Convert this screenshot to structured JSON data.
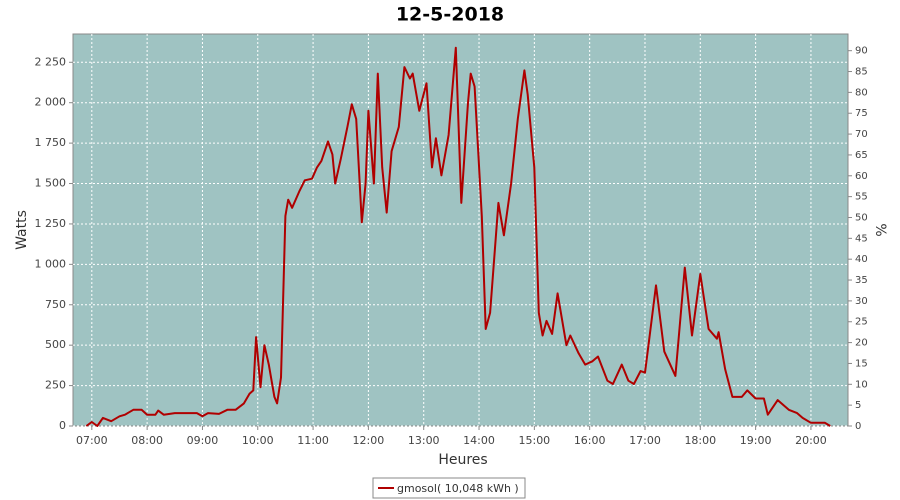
{
  "chart_data": {
    "type": "line",
    "title": "12-5-2018",
    "x_label": "Heures",
    "y_label": "Watts",
    "y2_label": "%",
    "plot_background": "#9fc3c2",
    "grid": true,
    "legend": "bottom",
    "xlim": [
      6.66,
      20.67
    ],
    "xticks": [
      {
        "value": 7,
        "label": "07:00"
      },
      {
        "value": 8,
        "label": "08:00"
      },
      {
        "value": 9,
        "label": "09:00"
      },
      {
        "value": 10,
        "label": "10:00"
      },
      {
        "value": 11,
        "label": "11:00"
      },
      {
        "value": 12,
        "label": "12:00"
      },
      {
        "value": 13,
        "label": "13:00"
      },
      {
        "value": 14,
        "label": "14:00"
      },
      {
        "value": 15,
        "label": "15:00"
      },
      {
        "value": 16,
        "label": "16:00"
      },
      {
        "value": 17,
        "label": "17:00"
      },
      {
        "value": 18,
        "label": "18:00"
      },
      {
        "value": 19,
        "label": "19:00"
      },
      {
        "value": 20,
        "label": "20:00"
      }
    ],
    "ylim": [
      0,
      2425
    ],
    "yticks": [
      0,
      250,
      500,
      750,
      {
        "value": 1000,
        "label": "1 000"
      },
      {
        "value": 1250,
        "label": "1 250"
      },
      {
        "value": 1500,
        "label": "1 500"
      },
      {
        "value": 1750,
        "label": "1 750"
      },
      {
        "value": 2000,
        "label": "2 000"
      },
      {
        "value": 2250,
        "label": "2 250"
      }
    ],
    "y2lim": [
      0,
      94
    ],
    "y2ticks": [
      0,
      5,
      10,
      15,
      20,
      25,
      30,
      35,
      40,
      45,
      50,
      55,
      60,
      65,
      70,
      75,
      80,
      85,
      90
    ],
    "x": [
      6.9,
      7.0,
      7.1,
      7.2,
      7.35,
      7.5,
      7.6,
      7.75,
      7.9,
      8.0,
      8.15,
      8.2,
      8.3,
      8.5,
      8.9,
      9.0,
      9.1,
      9.3,
      9.45,
      9.6,
      9.75,
      9.85,
      9.92,
      9.97,
      10.05,
      10.12,
      10.2,
      10.3,
      10.35,
      10.42,
      10.5,
      10.55,
      10.62,
      10.75,
      10.85,
      10.98,
      11.07,
      11.15,
      11.27,
      11.35,
      11.4,
      11.5,
      11.62,
      11.7,
      11.78,
      11.88,
      11.95,
      12.0,
      12.1,
      12.17,
      12.25,
      12.33,
      12.42,
      12.55,
      12.65,
      12.75,
      12.8,
      12.92,
      13.05,
      13.15,
      13.22,
      13.32,
      13.45,
      13.58,
      13.68,
      13.8,
      13.85,
      13.92,
      14.05,
      14.12,
      14.2,
      14.35,
      14.45,
      14.58,
      14.7,
      14.82,
      14.88,
      15.0,
      15.08,
      15.15,
      15.22,
      15.32,
      15.42,
      15.52,
      15.58,
      15.65,
      15.8,
      15.92,
      16.05,
      16.15,
      16.32,
      16.42,
      16.58,
      16.7,
      16.8,
      16.92,
      17.0,
      17.2,
      17.35,
      17.55,
      17.72,
      17.85,
      18.0,
      18.15,
      18.3,
      18.33,
      18.45,
      18.58,
      18.75,
      18.85,
      19.0,
      19.15,
      19.22,
      19.4,
      19.6,
      19.75,
      19.85,
      20.0,
      20.25,
      20.35
    ],
    "series": [
      {
        "name": "gmosol( 10,048 kWh )",
        "color": "#b00000",
        "values": [
          0,
          25,
          0,
          50,
          30,
          60,
          70,
          100,
          100,
          70,
          70,
          95,
          70,
          80,
          80,
          60,
          80,
          75,
          100,
          100,
          140,
          200,
          220,
          550,
          240,
          500,
          380,
          180,
          140,
          300,
          1300,
          1400,
          1350,
          1450,
          1520,
          1530,
          1600,
          1640,
          1760,
          1680,
          1500,
          1650,
          1850,
          1990,
          1900,
          1260,
          1500,
          1950,
          1500,
          2180,
          1600,
          1320,
          1700,
          1850,
          2220,
          2150,
          2180,
          1950,
          2120,
          1600,
          1780,
          1550,
          1800,
          2340,
          1380,
          2000,
          2180,
          2100,
          1300,
          600,
          700,
          1380,
          1180,
          1500,
          1900,
          2200,
          2050,
          1600,
          700,
          560,
          650,
          570,
          820,
          620,
          500,
          560,
          450,
          380,
          400,
          430,
          280,
          260,
          380,
          280,
          260,
          340,
          330,
          870,
          460,
          310,
          980,
          560,
          940,
          600,
          540,
          580,
          350,
          180,
          180,
          220,
          170,
          170,
          70,
          160,
          100,
          80,
          50,
          20,
          20,
          0
        ]
      }
    ]
  }
}
